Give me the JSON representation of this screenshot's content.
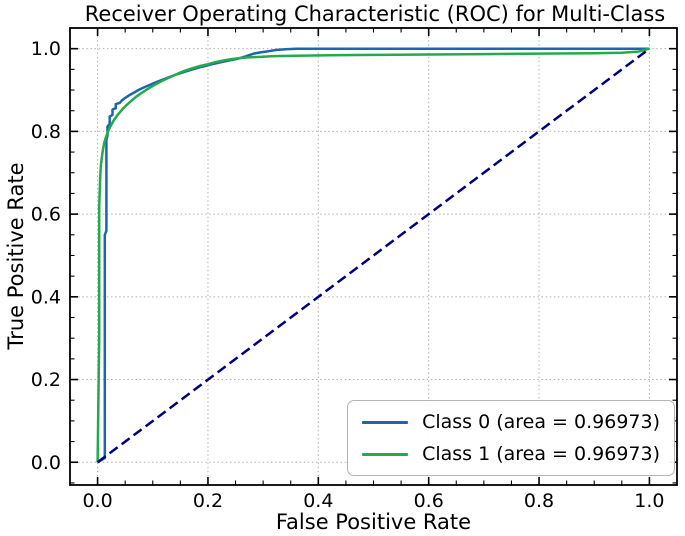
{
  "chart_data": {
    "type": "line",
    "title": "Receiver Operating Characteristic (ROC) for Multi-Class",
    "xlabel": "False Positive Rate",
    "ylabel": "True Positive Rate",
    "xlim": [
      -0.05,
      1.05
    ],
    "ylim": [
      -0.055,
      1.05
    ],
    "xticks": [
      0.0,
      0.2,
      0.4,
      0.6,
      0.8,
      1.0
    ],
    "xtick_labels": [
      "0.0",
      "0.2",
      "0.4",
      "0.6",
      "0.8",
      "1.0"
    ],
    "yticks": [
      0.0,
      0.2,
      0.4,
      0.6,
      0.8,
      1.0
    ],
    "ytick_labels": [
      "0.0",
      "0.2",
      "0.4",
      "0.6",
      "0.8",
      "1.0"
    ],
    "minor_tick_step": 0.05,
    "grid": true,
    "grid_color": "#b0b0b0",
    "legend": {
      "position": "lower right",
      "entries": [
        {
          "label": "Class 0 (area = 0.96973)",
          "color": "#1c66b0"
        },
        {
          "label": "Class 1 (area = 0.96973)",
          "color": "#23aa4b"
        }
      ]
    },
    "series": [
      {
        "id": "class-0",
        "name": "Class 0 (area = 0.96973)",
        "color": "#1c66b0",
        "style": "solid",
        "points": [
          [
            0.0,
            0.0
          ],
          [
            0.013,
            0.01
          ],
          [
            0.013,
            0.55
          ],
          [
            0.016,
            0.56
          ],
          [
            0.016,
            0.78
          ],
          [
            0.018,
            0.79
          ],
          [
            0.018,
            0.812
          ],
          [
            0.022,
            0.818
          ],
          [
            0.022,
            0.836
          ],
          [
            0.027,
            0.84
          ],
          [
            0.027,
            0.853
          ],
          [
            0.033,
            0.856
          ],
          [
            0.033,
            0.866
          ],
          [
            0.04,
            0.869
          ],
          [
            0.044,
            0.875
          ],
          [
            0.05,
            0.881
          ],
          [
            0.057,
            0.887
          ],
          [
            0.065,
            0.893
          ],
          [
            0.074,
            0.9
          ],
          [
            0.083,
            0.906
          ],
          [
            0.092,
            0.911
          ],
          [
            0.101,
            0.916
          ],
          [
            0.112,
            0.922
          ],
          [
            0.123,
            0.928
          ],
          [
            0.135,
            0.934
          ],
          [
            0.148,
            0.94
          ],
          [
            0.16,
            0.945
          ],
          [
            0.172,
            0.95
          ],
          [
            0.185,
            0.955
          ],
          [
            0.198,
            0.959
          ],
          [
            0.212,
            0.964
          ],
          [
            0.226,
            0.968
          ],
          [
            0.24,
            0.972
          ],
          [
            0.252,
            0.975
          ],
          [
            0.262,
            0.979
          ],
          [
            0.272,
            0.983
          ],
          [
            0.283,
            0.988
          ],
          [
            0.295,
            0.991
          ],
          [
            0.31,
            0.994
          ],
          [
            0.325,
            0.997
          ],
          [
            0.345,
            0.999
          ],
          [
            0.36,
            1.0
          ],
          [
            1.0,
            1.0
          ]
        ]
      },
      {
        "id": "class-1",
        "name": "Class 1 (area = 0.96973)",
        "color": "#23aa4b",
        "style": "solid",
        "points": [
          [
            0.0,
            0.0
          ],
          [
            0.003,
            0.3
          ],
          [
            0.003,
            0.62
          ],
          [
            0.004,
            0.66
          ],
          [
            0.005,
            0.695
          ],
          [
            0.006,
            0.718
          ],
          [
            0.008,
            0.74
          ],
          [
            0.01,
            0.758
          ],
          [
            0.012,
            0.772
          ],
          [
            0.015,
            0.786
          ],
          [
            0.019,
            0.8
          ],
          [
            0.024,
            0.814
          ],
          [
            0.03,
            0.828
          ],
          [
            0.037,
            0.841
          ],
          [
            0.044,
            0.852
          ],
          [
            0.052,
            0.863
          ],
          [
            0.061,
            0.874
          ],
          [
            0.07,
            0.884
          ],
          [
            0.08,
            0.893
          ],
          [
            0.09,
            0.902
          ],
          [
            0.1,
            0.91
          ],
          [
            0.111,
            0.918
          ],
          [
            0.123,
            0.926
          ],
          [
            0.136,
            0.934
          ],
          [
            0.149,
            0.942
          ],
          [
            0.161,
            0.948
          ],
          [
            0.173,
            0.953
          ],
          [
            0.186,
            0.958
          ],
          [
            0.199,
            0.962
          ],
          [
            0.212,
            0.967
          ],
          [
            0.226,
            0.971
          ],
          [
            0.24,
            0.974
          ],
          [
            0.255,
            0.977
          ],
          [
            0.272,
            0.979
          ],
          [
            0.29,
            0.98
          ],
          [
            0.32,
            0.982
          ],
          [
            0.36,
            0.983
          ],
          [
            0.42,
            0.984
          ],
          [
            0.5,
            0.985
          ],
          [
            0.6,
            0.986
          ],
          [
            0.7,
            0.987
          ],
          [
            0.8,
            0.988
          ],
          [
            0.9,
            0.989
          ],
          [
            0.95,
            0.99
          ],
          [
            0.98,
            0.993
          ],
          [
            1.0,
            1.0
          ]
        ]
      },
      {
        "id": "chance-diagonal",
        "name": "chance-diagonal",
        "color": "#000080",
        "style": "dashed",
        "points": [
          [
            0.0,
            0.0
          ],
          [
            1.0,
            1.0
          ]
        ]
      }
    ]
  }
}
